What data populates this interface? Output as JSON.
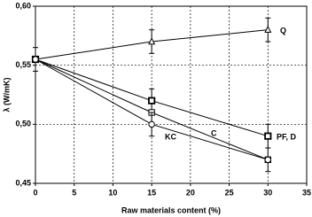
{
  "chart_data": {
    "type": "line",
    "x_label": "Raw materials content (%)",
    "y_label": "λ (W/mK)",
    "xlim": [
      0,
      35
    ],
    "xticks": [
      0,
      5,
      10,
      15,
      20,
      25,
      30,
      35
    ],
    "ylim": [
      0.45,
      0.6
    ],
    "yticks": [
      {
        "value": 0.45,
        "label": "0,45"
      },
      {
        "value": 0.5,
        "label": "0,50"
      },
      {
        "value": 0.55,
        "label": "0,55"
      },
      {
        "value": 0.6,
        "label": "0,60"
      }
    ],
    "grid": true,
    "x": [
      0,
      15,
      30
    ],
    "series": [
      {
        "name": "Q",
        "color": "#000000",
        "marker": "triangle",
        "values": [
          0.555,
          0.57,
          0.58
        ],
        "errors": [
          0.01,
          0.01,
          0.01
        ]
      },
      {
        "name": "PF, D",
        "color": "#000000",
        "marker": "square-filled",
        "values": [
          0.555,
          0.52,
          0.49
        ],
        "errors": [
          null,
          0.01,
          0.01
        ]
      },
      {
        "name": "C",
        "color": "#000000",
        "marker": "square",
        "values": [
          0.555,
          0.51,
          0.47
        ],
        "errors": [
          null,
          null,
          null
        ]
      },
      {
        "name": "KC",
        "color": "#000000",
        "marker": "circle",
        "values": [
          0.555,
          0.5,
          0.47
        ],
        "errors": [
          null,
          0.01,
          0.01
        ]
      }
    ]
  }
}
